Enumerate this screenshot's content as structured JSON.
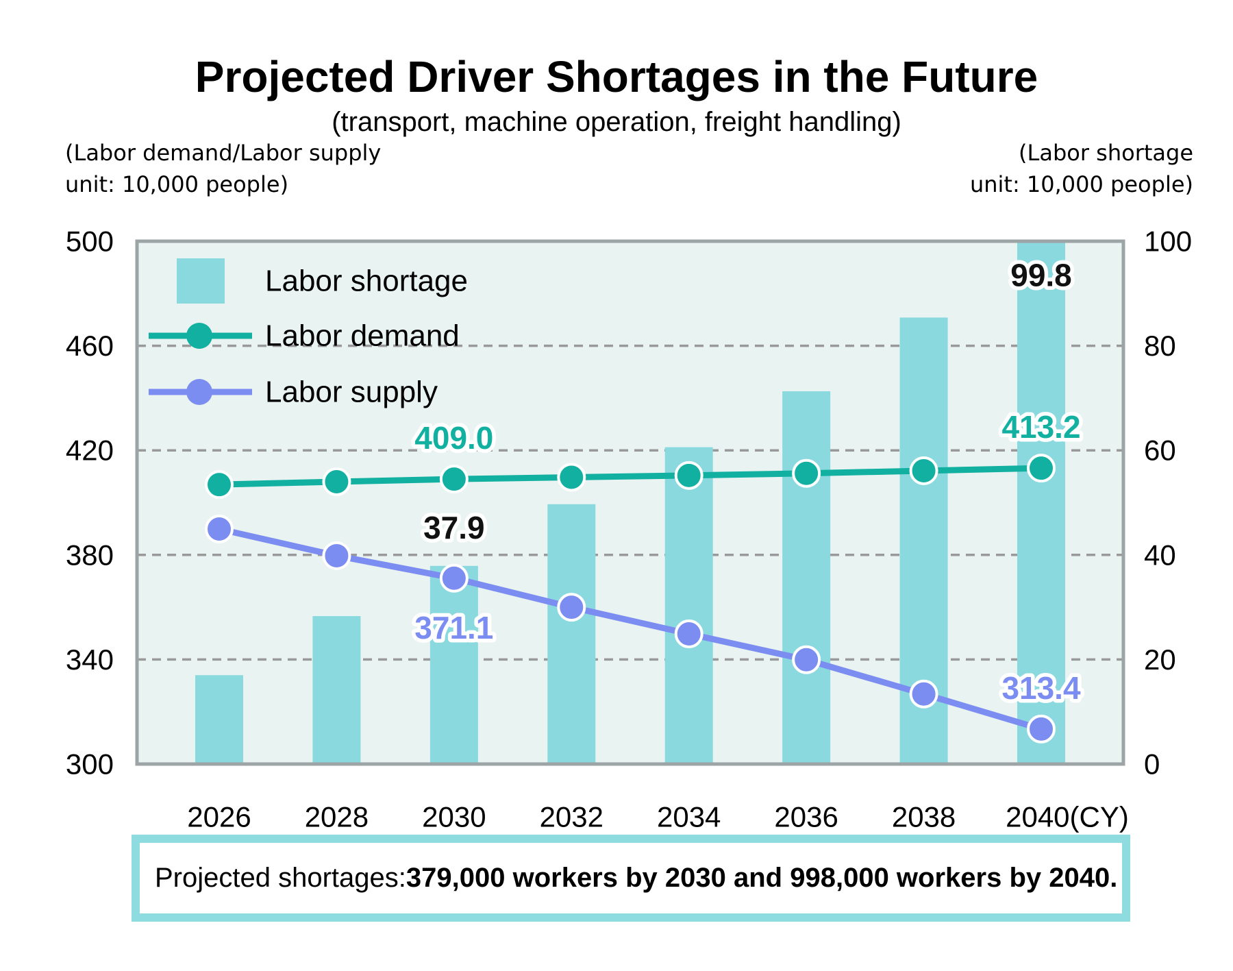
{
  "title": "Projected Driver Shortages in the Future",
  "subtitle": "(transport, machine operation, freight handling)",
  "left_axis_note": {
    "line1": "(Labor demand/Labor supply",
    "line2": "unit: 10,000 people)"
  },
  "right_axis_note": {
    "line1": "(Labor shortage",
    "line2": "unit: 10,000 people)"
  },
  "note_box": {
    "prefix": "Projected shortages: ",
    "bold_text": "379,000 workers by 2030 and 998,000 workers by 2040."
  },
  "colors": {
    "bar": "#89d9de",
    "demand": "#12b0a0",
    "supply": "#7c8df1",
    "plot_bg": "#e9f3f1",
    "grid": "#999999",
    "border": "#9da4a6",
    "note_border": "#8fdce0",
    "annotation_dark": "#111111",
    "halo": "#ffffff"
  },
  "chart_data": {
    "type": "bar",
    "subtype": "bar-line-combo",
    "categories": [
      "2026",
      "2028",
      "2030",
      "2032",
      "2034",
      "2036",
      "2038",
      "2040"
    ],
    "x_axis_suffix": "(CY)",
    "series": [
      {
        "name": "Labor shortage",
        "type": "bar",
        "axis": "right",
        "color_key": "bar",
        "values": [
          17.0,
          28.3,
          37.9,
          49.7,
          60.6,
          71.3,
          85.4,
          99.8
        ]
      },
      {
        "name": "Labor demand",
        "type": "line",
        "axis": "left",
        "color_key": "demand",
        "values": [
          406.9,
          408.0,
          409.0,
          409.7,
          410.4,
          411.2,
          412.2,
          413.2
        ]
      },
      {
        "name": "Labor supply",
        "type": "line",
        "axis": "left",
        "color_key": "supply",
        "values": [
          389.9,
          379.7,
          371.1,
          360.0,
          349.8,
          339.9,
          326.8,
          313.4
        ]
      }
    ],
    "left_axis": {
      "min": 300,
      "max": 500,
      "ticks": [
        500,
        460,
        420,
        380,
        340,
        300
      ]
    },
    "right_axis": {
      "min": 0,
      "max": 100,
      "ticks": [
        100,
        80,
        60,
        40,
        20,
        0
      ]
    },
    "gridlines_left_values": [
      460,
      420,
      380,
      340
    ],
    "grid": "dashed",
    "legend_position": "top-left-inside",
    "legend": [
      "Labor shortage",
      "Labor demand",
      "Labor supply"
    ],
    "annotations": [
      {
        "text": "409.0",
        "series": "Labor demand",
        "category": "2030",
        "placement": "above"
      },
      {
        "text": "37.9",
        "series": "Labor shortage",
        "category": "2030",
        "placement": "above-bar"
      },
      {
        "text": "371.1",
        "series": "Labor supply",
        "category": "2030",
        "placement": "below"
      },
      {
        "text": "99.8",
        "series": "Labor shortage",
        "category": "2040",
        "placement": "inside-bar-top"
      },
      {
        "text": "413.2",
        "series": "Labor demand",
        "category": "2040",
        "placement": "above"
      },
      {
        "text": "313.4",
        "series": "Labor supply",
        "category": "2040",
        "placement": "above"
      }
    ]
  }
}
